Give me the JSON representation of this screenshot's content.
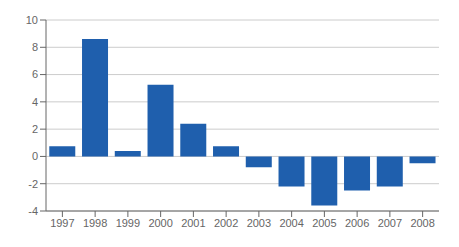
{
  "chart_data": {
    "type": "bar",
    "categories": [
      "1997",
      "1998",
      "1999",
      "2000",
      "2001",
      "2002",
      "2003",
      "2004",
      "2005",
      "2006",
      "2007",
      "2008"
    ],
    "values": [
      0.75,
      8.6,
      0.4,
      5.25,
      2.4,
      0.75,
      -0.8,
      -2.2,
      -3.6,
      -2.5,
      -2.2,
      -0.5
    ],
    "color": "#1F5FAD",
    "ylim": [
      -4,
      10
    ],
    "yticks": [
      -4,
      -2,
      0,
      2,
      4,
      6,
      8,
      10
    ],
    "grid": true
  }
}
